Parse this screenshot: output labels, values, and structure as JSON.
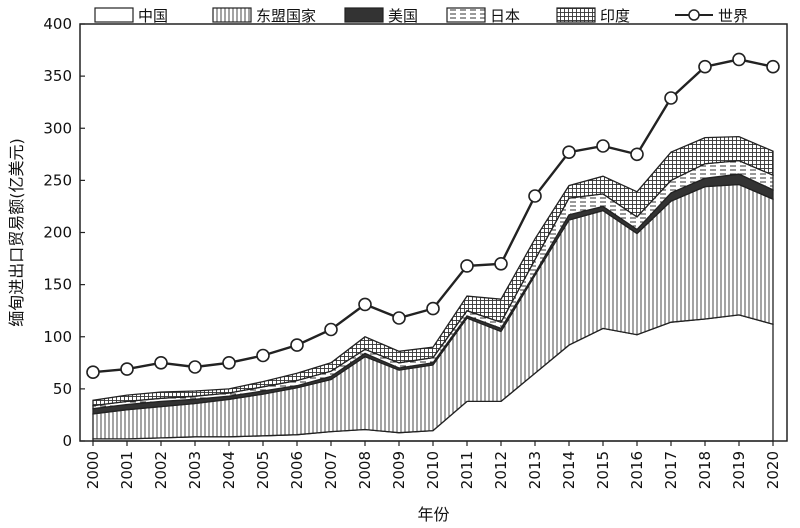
{
  "chart_data": {
    "type": "area",
    "stacked": true,
    "x": [
      "2000",
      "2001",
      "2002",
      "2003",
      "2004",
      "2005",
      "2006",
      "2007",
      "2008",
      "2009",
      "2010",
      "2011",
      "2012",
      "2013",
      "2014",
      "2015",
      "2016",
      "2017",
      "2018",
      "2019",
      "2020"
    ],
    "series": [
      {
        "name": "中国",
        "pattern": "white",
        "values": [
          2,
          2,
          3,
          4,
          4,
          5,
          6,
          9,
          11,
          8,
          10,
          38,
          38,
          65,
          92,
          108,
          102,
          114,
          117,
          121,
          112
        ]
      },
      {
        "name": "东盟国家",
        "pattern": "vertical-lines",
        "values": [
          24,
          28,
          30,
          32,
          36,
          40,
          45,
          50,
          70,
          60,
          63,
          80,
          67,
          94,
          120,
          113,
          97,
          116,
          127,
          125,
          120
        ]
      },
      {
        "name": "美国",
        "pattern": "black",
        "values": [
          5,
          5,
          5,
          4,
          3,
          3,
          2,
          3,
          3,
          2,
          2,
          2,
          3,
          2,
          5,
          4,
          4,
          8,
          8,
          10,
          9
        ]
      },
      {
        "name": "日本",
        "pattern": "dashed",
        "values": [
          3,
          3,
          3,
          3,
          3,
          4,
          5,
          5,
          4,
          5,
          5,
          5,
          6,
          13,
          16,
          12,
          12,
          12,
          14,
          13,
          14
        ]
      },
      {
        "name": "印度",
        "pattern": "grid",
        "values": [
          5,
          6,
          6,
          5,
          4,
          5,
          7,
          8,
          12,
          11,
          10,
          14,
          22,
          20,
          12,
          17,
          24,
          27,
          25,
          23,
          23
        ]
      }
    ],
    "line_series": {
      "name": "世界",
      "values": [
        66,
        69,
        75,
        71,
        75,
        82,
        92,
        107,
        131,
        118,
        127,
        168,
        170,
        235,
        277,
        283,
        275,
        329,
        359,
        366,
        359
      ]
    },
    "xlabel": "年份",
    "ylabel": "缅甸进出口贸易额(亿美元)",
    "ylim": [
      0,
      400
    ],
    "yticks": [
      0,
      50,
      100,
      150,
      200,
      250,
      300,
      350,
      400
    ],
    "legend_position": "top",
    "grid": false
  }
}
